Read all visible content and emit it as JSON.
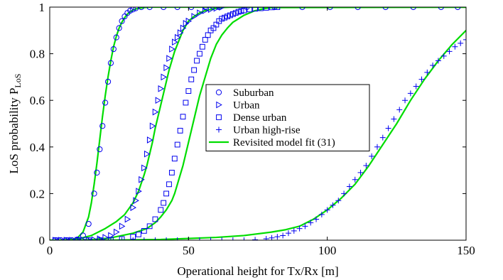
{
  "chart_data": {
    "type": "line",
    "xlabel": "Operational height for Tx/Rx [m]",
    "ylabel": "LoS probability P",
    "ylabel_sub": "LoS",
    "xlim": [
      0,
      150
    ],
    "ylim": [
      0,
      1
    ],
    "xticks": [
      0,
      50,
      100,
      150
    ],
    "yticks": [
      0,
      0.2,
      0.4,
      0.6,
      0.8,
      1
    ],
    "ytick_labels": [
      "0",
      "0.2",
      "0.4",
      "0.6",
      "0.8",
      "1"
    ],
    "grid": false,
    "legend_position": "center",
    "series": [
      {
        "name": "Suburban",
        "marker": "circle",
        "color": "#0000ee",
        "x": [
          2,
          4,
          6,
          8,
          10,
          12,
          14,
          16,
          17,
          18,
          19,
          20,
          21,
          22,
          23,
          24,
          25,
          26,
          27,
          28,
          29,
          30,
          31,
          33,
          36,
          41,
          46,
          51,
          56,
          61,
          71,
          81,
          91,
          101,
          111,
          121,
          131,
          141,
          147
        ],
        "y": [
          0,
          0,
          0,
          0,
          0.003,
          0.02,
          0.07,
          0.2,
          0.29,
          0.39,
          0.49,
          0.59,
          0.68,
          0.76,
          0.82,
          0.87,
          0.91,
          0.94,
          0.96,
          0.975,
          0.985,
          0.99,
          0.995,
          1,
          1,
          1,
          1,
          1,
          1,
          1,
          1,
          1,
          1,
          1,
          1,
          1,
          1,
          1,
          1
        ]
      },
      {
        "name": "Urban",
        "marker": "triangle-right",
        "color": "#0000ee",
        "x": [
          2,
          4,
          6,
          8,
          10,
          12,
          14,
          16,
          18,
          20,
          22,
          24,
          26,
          28,
          30,
          31,
          32,
          33,
          34,
          35,
          36,
          37,
          38,
          39,
          40,
          41,
          42,
          43,
          44,
          45,
          46,
          47,
          48,
          49,
          50,
          52,
          54,
          56,
          58,
          60,
          62
        ],
        "y": [
          0,
          0,
          0,
          0,
          0,
          0,
          0,
          0.002,
          0.006,
          0.012,
          0.02,
          0.035,
          0.06,
          0.09,
          0.14,
          0.17,
          0.21,
          0.26,
          0.31,
          0.37,
          0.43,
          0.49,
          0.55,
          0.6,
          0.65,
          0.7,
          0.74,
          0.78,
          0.82,
          0.85,
          0.87,
          0.89,
          0.91,
          0.93,
          0.94,
          0.96,
          0.975,
          0.985,
          0.99,
          0.995,
          1
        ]
      },
      {
        "name": "Dense urban",
        "marker": "square",
        "color": "#0000ee",
        "x": [
          2,
          6,
          10,
          14,
          18,
          22,
          26,
          30,
          32,
          34,
          36,
          38,
          40,
          41,
          42,
          43,
          44,
          45,
          46,
          47,
          48,
          49,
          50,
          51,
          52,
          53,
          54,
          55,
          56,
          57,
          58,
          59,
          60,
          61,
          62,
          63,
          64,
          65,
          66,
          67,
          68,
          69,
          70,
          72,
          74,
          76,
          78,
          80,
          82
        ],
        "y": [
          0,
          0,
          0,
          0,
          0,
          0.002,
          0.005,
          0.015,
          0.025,
          0.04,
          0.06,
          0.09,
          0.13,
          0.16,
          0.2,
          0.24,
          0.29,
          0.35,
          0.41,
          0.47,
          0.53,
          0.59,
          0.64,
          0.69,
          0.73,
          0.77,
          0.8,
          0.83,
          0.86,
          0.88,
          0.9,
          0.91,
          0.925,
          0.94,
          0.95,
          0.955,
          0.96,
          0.965,
          0.97,
          0.975,
          0.98,
          0.983,
          0.986,
          0.99,
          0.993,
          0.995,
          0.997,
          0.999,
          1
        ]
      },
      {
        "name": "Urban high-rise",
        "marker": "plus",
        "color": "#0000ee",
        "x": [
          2,
          6,
          10,
          14,
          18,
          22,
          26,
          30,
          34,
          38,
          42,
          46,
          50,
          54,
          58,
          62,
          66,
          70,
          74,
          78,
          80,
          82,
          84,
          86,
          88,
          90,
          92,
          94,
          96,
          98,
          100,
          102,
          104,
          106,
          108,
          110,
          112,
          114,
          116,
          118,
          120,
          122,
          124,
          126,
          128,
          130,
          132,
          134,
          136,
          138,
          140,
          142,
          144,
          146,
          148,
          150
        ],
        "y": [
          0,
          0,
          0,
          0,
          0,
          0,
          0,
          0,
          0,
          0,
          0,
          0,
          0,
          0,
          0,
          0,
          0,
          0,
          0.002,
          0.006,
          0.01,
          0.015,
          0.02,
          0.03,
          0.04,
          0.05,
          0.06,
          0.075,
          0.09,
          0.11,
          0.13,
          0.15,
          0.17,
          0.2,
          0.23,
          0.26,
          0.29,
          0.32,
          0.36,
          0.4,
          0.44,
          0.48,
          0.52,
          0.56,
          0.6,
          0.63,
          0.66,
          0.69,
          0.72,
          0.75,
          0.77,
          0.79,
          0.81,
          0.83,
          0.845,
          0.86
        ]
      },
      {
        "name": "Revisited model fit (31)",
        "marker": "line",
        "color": "#00dd00",
        "curves": [
          {
            "x": [
              0,
              5,
              8,
              10,
              12,
              14,
              15,
              16,
              17,
              18,
              19,
              20,
              21,
              22,
              23,
              24,
              25,
              26,
              27,
              28,
              29,
              30,
              31,
              32,
              34,
              36,
              40,
              150
            ],
            "y": [
              0,
              0,
              0.002,
              0.01,
              0.035,
              0.1,
              0.16,
              0.24,
              0.33,
              0.43,
              0.53,
              0.62,
              0.7,
              0.77,
              0.83,
              0.875,
              0.91,
              0.935,
              0.955,
              0.97,
              0.98,
              0.987,
              0.992,
              0.995,
              0.998,
              1,
              1,
              1
            ]
          },
          {
            "x": [
              3,
              10,
              15,
              20,
              24,
              27,
              30,
              32,
              34,
              35,
              36,
              37,
              38,
              39,
              40,
              41,
              42,
              43,
              44,
              45,
              46,
              47,
              48,
              50,
              52,
              54,
              56,
              58,
              60,
              62,
              65,
              150
            ],
            "y": [
              0,
              0.005,
              0.02,
              0.05,
              0.08,
              0.11,
              0.16,
              0.21,
              0.28,
              0.32,
              0.37,
              0.42,
              0.48,
              0.53,
              0.58,
              0.63,
              0.68,
              0.73,
              0.77,
              0.81,
              0.84,
              0.87,
              0.9,
              0.94,
              0.96,
              0.975,
              0.985,
              0.99,
              0.995,
              0.998,
              1,
              1
            ]
          },
          {
            "x": [
              3,
              15,
              22,
              30,
              35,
              38,
              40,
              42,
              44,
              45,
              46,
              47,
              48,
              49,
              50,
              51,
              52,
              53,
              54,
              55,
              56,
              57,
              58,
              60,
              62,
              64,
              66,
              68,
              70,
              72,
              74,
              76,
              78,
              80,
              150
            ],
            "y": [
              0,
              0.002,
              0.01,
              0.03,
              0.05,
              0.075,
              0.1,
              0.13,
              0.17,
              0.2,
              0.24,
              0.28,
              0.32,
              0.37,
              0.42,
              0.47,
              0.52,
              0.57,
              0.62,
              0.66,
              0.7,
              0.74,
              0.78,
              0.84,
              0.88,
              0.91,
              0.935,
              0.95,
              0.965,
              0.975,
              0.985,
              0.99,
              0.995,
              0.998,
              1
            ]
          },
          {
            "x": [
              3,
              20,
              40,
              60,
              70,
              80,
              85,
              90,
              95,
              100,
              105,
              110,
              115,
              120,
              125,
              130,
              135,
              140,
              145,
              150
            ],
            "y": [
              0,
              0,
              0.003,
              0.012,
              0.02,
              0.035,
              0.045,
              0.06,
              0.09,
              0.13,
              0.18,
              0.24,
              0.32,
              0.41,
              0.5,
              0.6,
              0.69,
              0.77,
              0.84,
              0.9
            ]
          }
        ]
      }
    ]
  }
}
